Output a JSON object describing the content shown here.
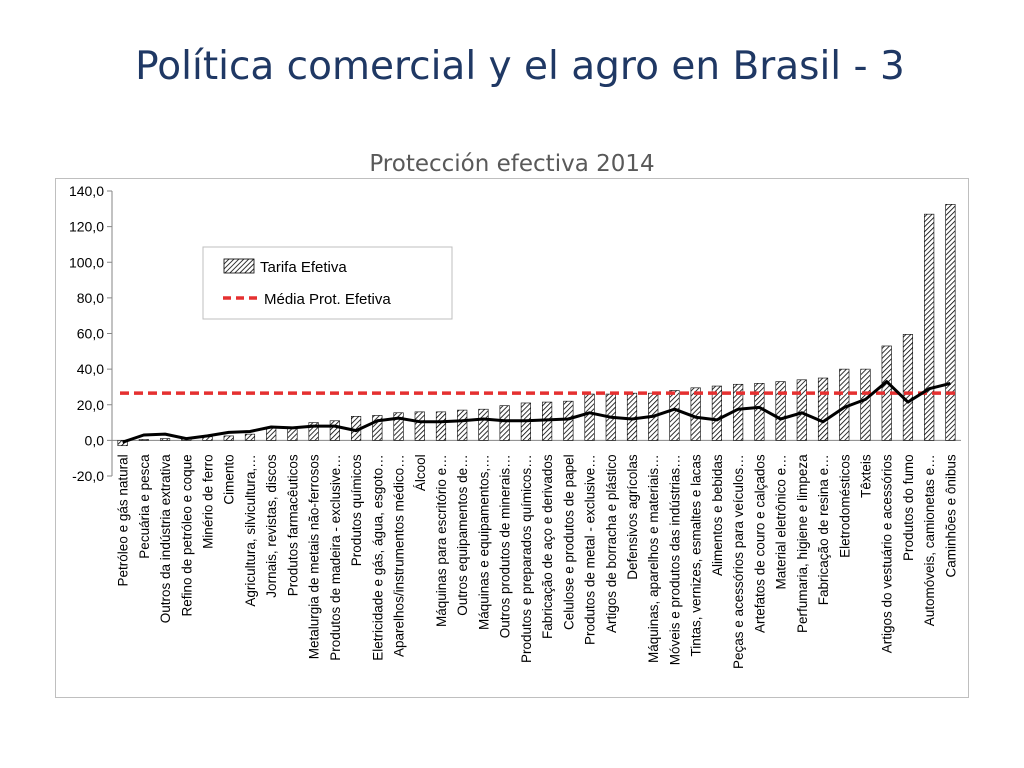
{
  "slide": {
    "title": "Política comercial y el agro en Brasil - 3"
  },
  "chart_data": {
    "type": "bar",
    "title": "Protección efectiva 2014",
    "xlabel": "",
    "ylabel": "",
    "ylim": [
      -20,
      140
    ],
    "yticks": [
      "-20,0",
      "0,0",
      "20,0",
      "40,0",
      "60,0",
      "80,0",
      "100,0",
      "120,0",
      "140,0"
    ],
    "grid": false,
    "legend_position": "upper-left",
    "categories": [
      "Petróleo e gás natural",
      "Pecuária e pesca",
      "Outros da indústria extrativa",
      "Refino de petróleo e coque",
      "Minério de ferro",
      "Cimento",
      "Agricultura, silvicultura,…",
      "Jornais, revistas, discos",
      "Produtos farmacêuticos",
      "Metalurgia de metais não-ferrosos",
      "Produtos de madeira - exclusive…",
      "Produtos  químicos",
      "Eletricidade e gás, água, esgoto…",
      "Aparelhos/instrumentos médico…",
      "Álcool",
      "Máquinas para escritório e…",
      "Outros equipamentos de…",
      "Máquinas e equipamentos,…",
      "Outros produtos de minerais…",
      "Produtos e preparados químicos…",
      "Fabricação de aço e derivados",
      "Celulose e produtos de papel",
      "Produtos de metal - exclusive…",
      "Artigos de borracha e plástico",
      "Defensivos agrícolas",
      "Máquinas, aparelhos e materiais…",
      "Móveis e produtos das indústrias…",
      "Tintas, vernizes, esmaltes e lacas",
      "Alimentos e bebidas",
      "Peças e acessórios para veículos…",
      "Artefatos de couro e calçados",
      "Material eletrônico e…",
      "Perfumaria, higiene e limpeza",
      "Fabricação de resina e…",
      "Eletrodomésticos",
      "Têxteis",
      "Artigos do vestuário e acessórios",
      "Produtos do fumo",
      "Automóveis, camionetas e…",
      "Caminhões e ônibus"
    ],
    "series": [
      {
        "name": "Tarifa Efetiva",
        "type": "bar",
        "color": "#000000",
        "values": [
          -3,
          0.5,
          1,
          1.5,
          2,
          2.5,
          3.5,
          7,
          7.5,
          10,
          11,
          13.5,
          14,
          15.5,
          16,
          16,
          17,
          17.5,
          19.5,
          21,
          21.5,
          22,
          26,
          26,
          26.5,
          26.5,
          28,
          29.5,
          30.5,
          31.5,
          32,
          33,
          34,
          35,
          40,
          40,
          53,
          59.5,
          127,
          132.5
        ]
      },
      {
        "name": "",
        "type": "line",
        "color": "#000000",
        "values": [
          -1,
          3,
          3.5,
          1,
          2.5,
          4.5,
          5,
          7.5,
          7,
          8,
          8,
          5.5,
          11,
          12.5,
          10.5,
          10.5,
          11,
          12,
          11,
          11,
          11.5,
          12,
          15.5,
          13,
          12,
          13.5,
          17.5,
          13,
          11.5,
          17.5,
          18.5,
          12,
          15.5,
          10.5,
          18.5,
          23,
          33,
          21.5,
          29,
          32
        ]
      },
      {
        "name": "Média Prot. Efetiva",
        "type": "hline",
        "color": "#e53030",
        "value": 26.5
      }
    ]
  }
}
